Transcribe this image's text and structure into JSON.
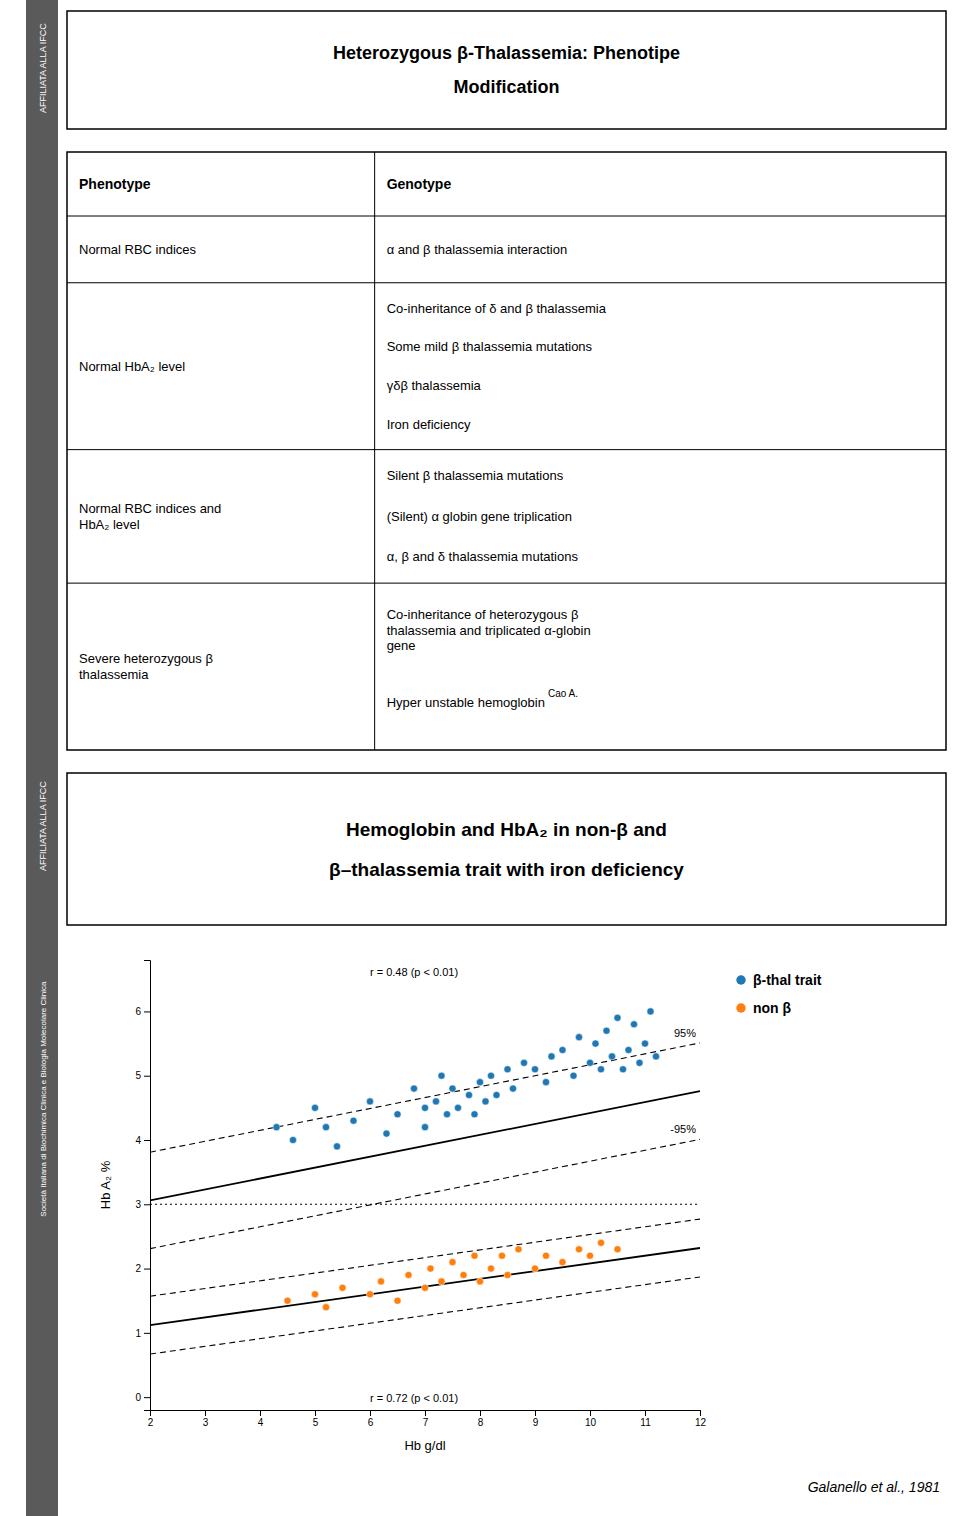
{
  "chart_data": [
    {
      "type": "table",
      "title": "Heterozygous β-Thalassemia: Phenotipe\nModification",
      "sidebar": [
        "AFFILIATA ALLA IFCC"
      ],
      "columns": [
        "Phenotype",
        "Genotype"
      ],
      "rows": [
        [
          "Normal RBC indices",
          [
            "α and β thalassemia interaction"
          ]
        ],
        [
          "Normal HbA₂ level",
          [
            "Co-inheritance of δ and β thalassemia",
            "Some mild β thalassemia mutations",
            "γδβ thalassemia",
            "Iron deficiency"
          ]
        ],
        [
          "Normal RBC indices and\nHbA₂ level",
          [
            "Silent β thalassemia mutations",
            "(Silent) α globin gene triplication",
            "α, β and δ thalassemia mutations"
          ]
        ],
        [
          "Severe heterozygous β\nthalassemia",
          [
            "Co-inheritance of heterozygous β\nthalassemia and triplicated α-globin\ngene",
            {
              "text": "Hyper unstable hemoglobin",
              "superscript": "Cao A."
            }
          ]
        ]
      ]
    },
    {
      "type": "scatter",
      "title": "Hemoglobin and HbA₂ in non-β and\nβ–thalassemia trait with iron deficiency",
      "sidebar": [
        "AFFILIATA ALLA IFCC",
        "Società Italiana di Biochimica Clinica e Biologia Molecolare Clinica"
      ],
      "xlabel": "Hb g/dl",
      "ylabel": "Hb A₂ %",
      "xlim": [
        2.0,
        12.0
      ],
      "ylim": [
        -0.2,
        6.8
      ],
      "xticks": [
        2,
        3,
        4,
        5,
        6,
        7,
        8,
        9,
        10,
        11,
        12
      ],
      "yticks": [
        0,
        1,
        2,
        3,
        4,
        5,
        6
      ],
      "grid": false,
      "legend": "right",
      "annotations": [
        "r = 0.48 (p < 0.01)",
        "r = 0.72 (p < 0.01)"
      ],
      "source": "Galanello et al., 1981",
      "series": [
        {
          "name": "β-thal trait",
          "type": "scatter",
          "marker": "circle",
          "x": [
            4.3,
            4.6,
            5.0,
            5.2,
            5.4,
            5.7,
            6.0,
            6.3,
            6.5,
            6.8,
            7.0,
            7.0,
            7.2,
            7.3,
            7.4,
            7.5,
            7.6,
            7.8,
            7.9,
            8.0,
            8.1,
            8.2,
            8.3,
            8.5,
            8.6,
            8.8,
            9.0,
            9.2,
            9.3,
            9.5,
            9.7,
            9.8,
            10.0,
            10.1,
            10.2,
            10.3,
            10.4,
            10.5,
            10.6,
            10.7,
            10.8,
            10.9,
            11.0,
            11.1,
            11.2
          ],
          "values": [
            4.2,
            4.0,
            4.5,
            4.2,
            3.9,
            4.3,
            4.6,
            4.1,
            4.4,
            4.8,
            4.5,
            4.2,
            4.6,
            5.0,
            4.4,
            4.8,
            4.5,
            4.7,
            4.4,
            4.9,
            4.6,
            5.0,
            4.7,
            5.1,
            4.8,
            5.2,
            5.1,
            4.9,
            5.3,
            5.4,
            5.0,
            5.6,
            5.2,
            5.5,
            5.1,
            5.7,
            5.3,
            5.9,
            5.1,
            5.4,
            5.8,
            5.2,
            5.5,
            6.0,
            5.3
          ]
        },
        {
          "name": "non β",
          "type": "scatter",
          "marker": "circle",
          "x": [
            4.5,
            5.0,
            5.2,
            5.5,
            6.0,
            6.2,
            6.5,
            6.7,
            7.0,
            7.1,
            7.3,
            7.5,
            7.7,
            7.9,
            8.0,
            8.2,
            8.4,
            8.5,
            8.7,
            9.0,
            9.2,
            9.5,
            9.8,
            10.0,
            10.2,
            10.5
          ],
          "values": [
            1.5,
            1.6,
            1.4,
            1.7,
            1.6,
            1.8,
            1.5,
            1.9,
            1.7,
            2.0,
            1.8,
            2.1,
            1.9,
            2.2,
            1.8,
            2.0,
            2.2,
            1.9,
            2.3,
            2.0,
            2.2,
            2.1,
            2.3,
            2.2,
            2.4,
            2.3
          ]
        },
        {
          "type": "line",
          "line_style": "dotted",
          "color": "#000000",
          "x": [
            2.0,
            12.0
          ],
          "values": [
            3.0,
            3.0
          ]
        },
        {
          "type": "line",
          "line_style": "solid",
          "color": "#000000",
          "x": [
            2.0,
            12.0
          ],
          "values": [
            3.06,
            4.76
          ]
        },
        {
          "type": "line",
          "line_style": "dashed",
          "color": "#000000",
          "label": "95%",
          "x": [
            2.0,
            12.0
          ],
          "values": [
            3.81,
            5.51
          ]
        },
        {
          "type": "line",
          "line_style": "dashed",
          "color": "#000000",
          "label": "-95%",
          "x": [
            2.0,
            12.0
          ],
          "values": [
            2.31,
            4.01
          ]
        },
        {
          "type": "line",
          "line_style": "solid",
          "color": "#000000",
          "x": [
            2.0,
            12.0
          ],
          "values": [
            1.12,
            2.32
          ]
        },
        {
          "type": "line",
          "line_style": "dashed",
          "color": "#000000",
          "x": [
            2.0,
            12.0
          ],
          "values": [
            1.57,
            2.77
          ]
        },
        {
          "type": "line",
          "line_style": "dashed",
          "color": "#000000",
          "x": [
            2.0,
            12.0
          ],
          "values": [
            0.67,
            1.87
          ]
        }
      ]
    }
  ]
}
